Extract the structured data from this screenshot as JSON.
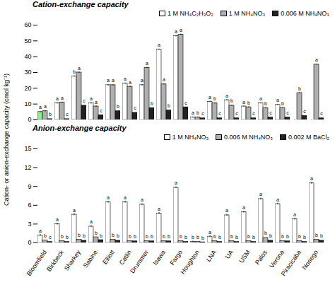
{
  "chart_data": [
    {
      "type": "bar",
      "title": "Cation-exchange capacity",
      "ylabel": "Cation- or anion-exchange capacity (cmol⁣ kg⁻¹)",
      "categories": [
        "Bloomfield",
        "Birkbeck",
        "Sharkey",
        "Sabine",
        "Elliott",
        "Catlin",
        "Drummer",
        "Isawa",
        "Fargo",
        "Houghton",
        "LNA",
        "UA",
        "USM",
        "Palos",
        "Verona",
        "Piracicaba",
        "Noriego"
      ],
      "series": [
        {
          "name": "1 M NH₄C₂H₃O₂",
          "color": "#ffffff",
          "colors": [
            "#90ee90",
            "#ffffff",
            "#ffffff",
            "#ffffff",
            "#ffffff",
            "#ffffff",
            "#ffffff",
            "#ffffff",
            "#ffffff",
            "#ffffff",
            "#ffffff",
            "#ffffff",
            "#ffffff",
            "#ffffff",
            "#ffffff",
            "#ffffff",
            "#ffffff"
          ],
          "values": [
            5.0,
            10.5,
            27.5,
            10.5,
            22.0,
            23.0,
            22.0,
            44.5,
            53.0,
            1.5,
            11.5,
            12.5,
            8.5,
            10.5,
            9.5,
            0.0,
            0.0
          ],
          "error": [
            0.4,
            0.4,
            0.4,
            0.4,
            0.4,
            0.4,
            0.4,
            0.4,
            0.4,
            0.4,
            0.4,
            0.4,
            0.4,
            0.4,
            0.4,
            0.4,
            0.4
          ],
          "annotations": [
            "a",
            "a",
            "b",
            "a",
            "a",
            "a",
            "a",
            "a",
            "a",
            "a",
            "a",
            "a",
            "a",
            "a",
            "a",
            null,
            null
          ]
        },
        {
          "name": "1 M NH₄NO₃",
          "color": "#b0b0b0",
          "values": [
            5.5,
            11.0,
            30.0,
            8.5,
            22.0,
            21.0,
            33.0,
            22.5,
            54.0,
            1.5,
            10.5,
            9.0,
            8.0,
            7.5,
            7.5,
            17.0,
            35.0
          ],
          "error": [
            0.4,
            0.4,
            0.4,
            0.4,
            0.4,
            0.4,
            0.4,
            0.4,
            0.4,
            0.4,
            0.4,
            0.4,
            0.4,
            0.4,
            0.4,
            0.4,
            0.4
          ],
          "annotations": [
            "a",
            "a",
            "a",
            "a",
            "a",
            "a",
            "a",
            "a",
            "a",
            "b",
            "b",
            "b",
            "b",
            "b",
            "b",
            "b",
            "a"
          ]
        },
        {
          "name": "0.006 M NH₄NO₃",
          "color": "#222222",
          "values": [
            0.5,
            0.5,
            9.0,
            3.0,
            5.5,
            4.5,
            7.5,
            6.0,
            8.0,
            1.0,
            1.0,
            1.0,
            1.0,
            1.5,
            1.5,
            2.5,
            1.0
          ],
          "annotations": [
            "b",
            "c",
            "c",
            "c",
            "b",
            "c",
            "b",
            "b",
            "c",
            "c",
            "c",
            "c",
            "c",
            "c",
            "c",
            "c",
            "c"
          ]
        }
      ],
      "ylim": [
        0,
        60
      ],
      "yticks": [
        0,
        10,
        20,
        30,
        40,
        50,
        60
      ],
      "grid": false,
      "legend": "upper right",
      "tick_labels": "y"
    },
    {
      "type": "bar",
      "title": "Anion-exchange capacity",
      "categories": [
        "Bloomfield",
        "Birkbeck",
        "Sharkey",
        "Sabine",
        "Elliott",
        "Catlin",
        "Drummer",
        "Isawa",
        "Fargo",
        "Houghton",
        "LNA",
        "UA",
        "USM",
        "Palos",
        "Verona",
        "Piracicaba",
        "Noriego"
      ],
      "series": [
        {
          "name": "1 M NH₄NO₃",
          "color": "#ffffff",
          "values": [
            1.2,
            3.0,
            4.5,
            2.6,
            6.5,
            6.5,
            6.1,
            4.7,
            8.8,
            0.15,
            1.0,
            4.4,
            4.9,
            7.0,
            6.2,
            3.8,
            9.5
          ],
          "error": [
            0.15,
            0.15,
            0.15,
            0.15,
            0.15,
            0.15,
            0.15,
            0.15,
            0.15,
            0.15,
            0.15,
            0.15,
            0.15,
            0.15,
            0.15,
            0.15,
            0.15
          ],
          "annotations": [
            "a",
            "a",
            "a",
            "a",
            "a",
            "a",
            "a",
            "a",
            "a",
            "b",
            "a",
            "a",
            "a",
            "a",
            "a",
            "a",
            "a"
          ]
        },
        {
          "name": "0.006 M NH₄NO₃",
          "color": "#b0b0b0",
          "values": [
            0.4,
            0.3,
            0.5,
            0.9,
            0.5,
            0.3,
            0.3,
            0.3,
            0.3,
            0.2,
            0.3,
            0.3,
            0.3,
            0.8,
            0.3,
            0.3,
            0.5
          ],
          "annotations": [
            "b",
            "b",
            "b",
            "b",
            "b",
            "b",
            "b",
            "b",
            "b",
            "b",
            "b",
            "b",
            "b",
            "b",
            "b",
            "b",
            "b"
          ]
        },
        {
          "name": "0.002 M BaCl₂",
          "color": "#222222",
          "values": [
            0.15,
            0.15,
            0.35,
            0.45,
            0.35,
            0.25,
            0.25,
            0.25,
            0.15,
            0.1,
            0.15,
            0.15,
            0.15,
            0.35,
            0.25,
            0.15,
            0.35
          ],
          "annotations": [
            "c",
            "b",
            "b",
            "b",
            "b",
            "b",
            "b",
            "b",
            "b",
            "b",
            "b",
            "b",
            "b",
            "b",
            "b",
            "b",
            "b"
          ]
        }
      ],
      "ylim": [
        0,
        15
      ],
      "yticks": [
        0,
        3,
        6,
        9,
        12,
        15
      ],
      "grid": false,
      "legend": "upper right"
    }
  ]
}
